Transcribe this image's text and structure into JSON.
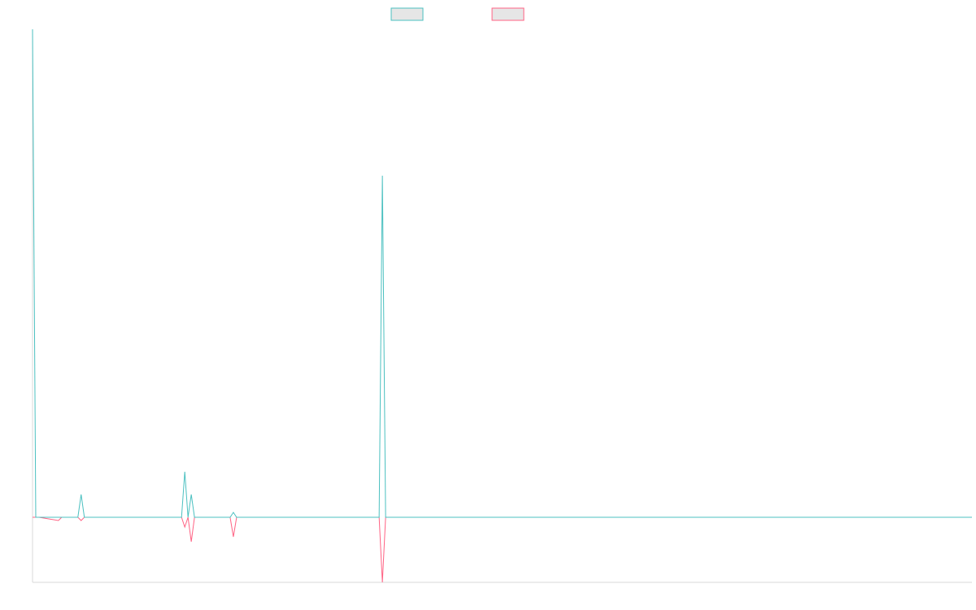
{
  "colors": {
    "series_1": "#4bc0c0",
    "series_2": "#ff6384",
    "legend_fill": "#e6e6e6",
    "axis": "#d9d9d9",
    "background": "#ffffff"
  },
  "chart_data": {
    "type": "line",
    "title": "",
    "xlabel": "",
    "ylabel": "",
    "grid": false,
    "legend": "top-center",
    "xlim": [
      0,
      290
    ],
    "ylim": [
      -20,
      150
    ],
    "x": [
      0,
      1,
      2,
      8,
      9,
      14,
      15,
      16,
      46,
      47,
      48,
      49,
      50,
      61,
      62,
      63,
      107,
      108,
      109,
      290
    ],
    "series": [
      {
        "values": [
          150,
          0,
          0,
          0,
          0,
          0,
          7,
          0,
          0,
          14,
          0,
          7,
          0,
          0,
          1.5,
          0,
          0,
          105,
          0,
          0
        ]
      },
      {
        "values": [
          0,
          0,
          0,
          -1,
          0,
          0,
          -1,
          0,
          0,
          -3,
          0,
          -7.5,
          0,
          0,
          -6,
          0,
          0,
          -20,
          0,
          0
        ]
      }
    ]
  }
}
